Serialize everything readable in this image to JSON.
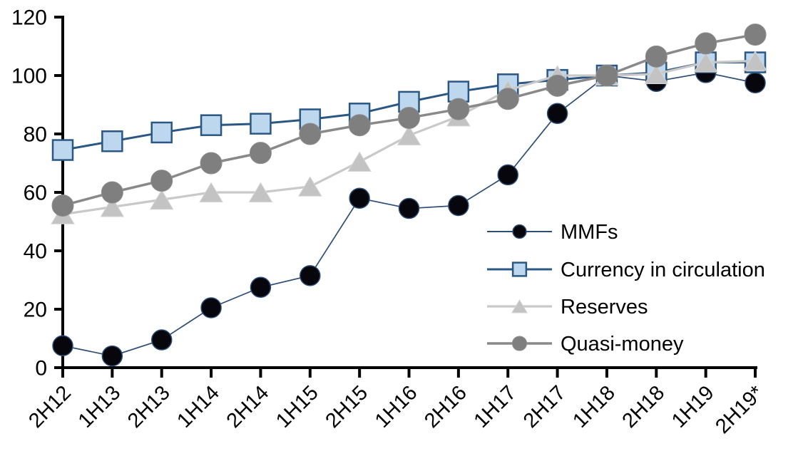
{
  "chart_data": {
    "type": "line",
    "title": "",
    "xlabel": "",
    "ylabel": "",
    "categories": [
      "2H12",
      "1H13",
      "2H13",
      "1H14",
      "2H14",
      "1H15",
      "2H15",
      "1H16",
      "2H16",
      "1H17",
      "2H17",
      "1H18",
      "2H18",
      "1H19",
      "2H19*"
    ],
    "series": [
      {
        "name": "MMFs",
        "values": [
          7.5,
          4,
          9.5,
          20.5,
          27.5,
          31.5,
          58,
          54.5,
          55.5,
          66,
          87,
          100,
          98,
          101,
          97.5
        ],
        "line_color": "#2d4d76",
        "line_width": 1.7,
        "marker": {
          "shape": "circle",
          "radius": 14,
          "fill": "#06060c",
          "stroke": "#2d4d76",
          "stroke_width": 1.5
        }
      },
      {
        "name": "Currency in circulation",
        "values": [
          74.5,
          77.5,
          80.5,
          83,
          83.5,
          85,
          87,
          91,
          94.5,
          97,
          98.5,
          100,
          101,
          104.5,
          104.5
        ],
        "line_color": "#2a5783",
        "line_width": 3,
        "marker": {
          "shape": "square",
          "size": 28,
          "fill": "#bdd7ee",
          "stroke": "#2a5783",
          "stroke_width": 2.5
        }
      },
      {
        "name": "Reserves",
        "values": [
          52.5,
          55,
          57.5,
          60,
          60,
          62,
          70.5,
          79.5,
          86,
          95,
          100,
          100,
          100.5,
          104.5,
          105
        ],
        "line_color": "#c9c9c9",
        "line_width": 3.2,
        "marker": {
          "shape": "triangle",
          "width": 32,
          "height": 27,
          "fill": "#c3c3c3",
          "stroke": "#d6d6d6",
          "stroke_width": 1
        }
      },
      {
        "name": "Quasi-money",
        "values": [
          55.5,
          60,
          64,
          70,
          73.5,
          80,
          83,
          85.5,
          88.5,
          92,
          96.5,
          100,
          106.5,
          111,
          114
        ],
        "line_color": "#898989",
        "line_width": 3.5,
        "marker": {
          "shape": "circle",
          "radius": 15,
          "fill": "#7f7f7f",
          "stroke": "#8d8d8d",
          "stroke_width": 1
        }
      }
    ],
    "ylim": [
      0,
      120
    ],
    "ytick_step": 20,
    "yticks": [
      0,
      20,
      40,
      60,
      80,
      100,
      120
    ],
    "grid": false,
    "axis_color": "#000000",
    "legend_position": "right-middle",
    "legend_labels": [
      "MMFs",
      "Currency in circulation",
      "Reserves",
      "Quasi-money"
    ],
    "x_tick_rotation": -45
  }
}
